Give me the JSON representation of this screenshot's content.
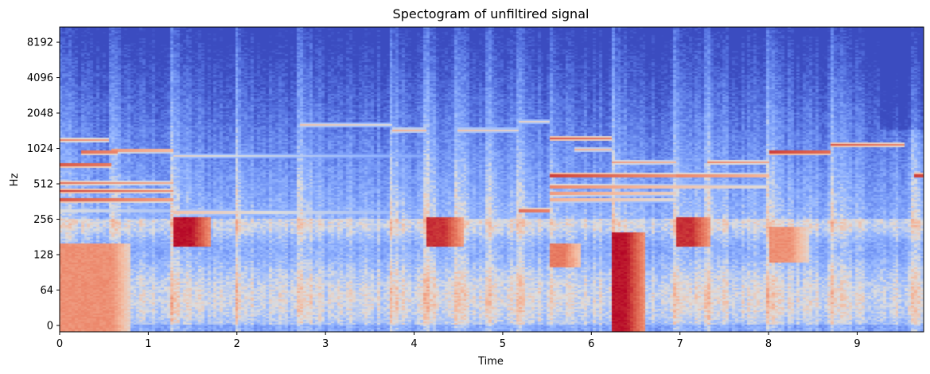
{
  "chart_data": {
    "type": "heatmap",
    "title": "Spectogram of unfiltired signal",
    "xlabel": "Time",
    "ylabel": "Hz",
    "xlim": [
      0,
      9.75
    ],
    "ylim_hz": [
      0,
      11025
    ],
    "y_scale": "symlog",
    "colormap": "coolwarm",
    "x_ticks": [
      0,
      1,
      2,
      3,
      4,
      5,
      6,
      7,
      8,
      9
    ],
    "x_tick_labels": [
      "0",
      "1",
      "2",
      "3",
      "4",
      "5",
      "6",
      "7",
      "8",
      "9"
    ],
    "y_ticks": [
      0,
      64,
      128,
      256,
      512,
      1024,
      2048,
      4096,
      8192
    ],
    "y_tick_labels": [
      "0",
      "64",
      "128",
      "256",
      "512",
      "1024",
      "2048",
      "4096",
      "8192"
    ],
    "onsets_s": [
      0.0,
      0.57,
      1.28,
      2.0,
      2.72,
      3.75,
      4.15,
      4.5,
      4.85,
      5.18,
      5.55,
      6.25,
      6.95,
      7.32,
      8.02,
      8.72,
      9.65
    ],
    "tones": [
      {
        "start": 0.0,
        "end": 1.28,
        "hz": 440,
        "level": 0.9
      },
      {
        "start": 0.0,
        "end": 1.28,
        "hz": 370,
        "level": 0.85
      },
      {
        "start": 0.0,
        "end": 1.28,
        "hz": 520,
        "level": 0.8
      },
      {
        "start": 0.0,
        "end": 0.6,
        "hz": 740,
        "level": 0.85
      },
      {
        "start": 0.25,
        "end": 0.65,
        "hz": 950,
        "level": 0.8
      },
      {
        "start": 0.6,
        "end": 1.28,
        "hz": 980,
        "level": 0.7
      },
      {
        "start": 0.0,
        "end": 0.55,
        "hz": 1200,
        "level": 0.75
      },
      {
        "start": 1.28,
        "end": 4.15,
        "hz": 290,
        "level": 0.6
      },
      {
        "start": 1.28,
        "end": 4.15,
        "hz": 880,
        "level": 0.55
      },
      {
        "start": 2.72,
        "end": 3.75,
        "hz": 1600,
        "level": 0.6
      },
      {
        "start": 3.75,
        "end": 4.15,
        "hz": 1450,
        "level": 0.65
      },
      {
        "start": 4.5,
        "end": 5.18,
        "hz": 1450,
        "level": 0.6
      },
      {
        "start": 5.18,
        "end": 5.55,
        "hz": 300,
        "level": 0.8
      },
      {
        "start": 5.18,
        "end": 5.55,
        "hz": 1700,
        "level": 0.55
      },
      {
        "start": 5.55,
        "end": 6.95,
        "hz": 600,
        "level": 0.9
      },
      {
        "start": 5.55,
        "end": 6.95,
        "hz": 480,
        "level": 0.75
      },
      {
        "start": 5.55,
        "end": 6.95,
        "hz": 420,
        "level": 0.7
      },
      {
        "start": 5.55,
        "end": 6.95,
        "hz": 370,
        "level": 0.65
      },
      {
        "start": 5.55,
        "end": 6.25,
        "hz": 1250,
        "level": 0.85
      },
      {
        "start": 5.8,
        "end": 6.25,
        "hz": 1000,
        "level": 0.65
      },
      {
        "start": 6.25,
        "end": 6.95,
        "hz": 780,
        "level": 0.7
      },
      {
        "start": 6.95,
        "end": 8.02,
        "hz": 600,
        "level": 0.75
      },
      {
        "start": 6.95,
        "end": 8.02,
        "hz": 480,
        "level": 0.6
      },
      {
        "start": 7.32,
        "end": 8.02,
        "hz": 780,
        "level": 0.75
      },
      {
        "start": 8.02,
        "end": 8.72,
        "hz": 950,
        "level": 0.9
      },
      {
        "start": 8.72,
        "end": 9.55,
        "hz": 1100,
        "level": 0.85
      },
      {
        "start": 9.65,
        "end": 9.75,
        "hz": 600,
        "level": 0.9
      },
      {
        "start": 0.0,
        "end": 9.75,
        "hz": 300,
        "level": 0.5
      }
    ],
    "low_frequency_bursts": [
      {
        "start": 0.0,
        "end": 0.6,
        "hz_low": 0,
        "hz_high": 160,
        "level": 0.75
      },
      {
        "start": 1.28,
        "end": 1.5,
        "hz_low": 150,
        "hz_high": 260,
        "level": 1.0
      },
      {
        "start": 4.15,
        "end": 4.35,
        "hz_low": 150,
        "hz_high": 260,
        "level": 0.95
      },
      {
        "start": 5.55,
        "end": 5.7,
        "hz_low": 100,
        "hz_high": 160,
        "level": 0.8
      },
      {
        "start": 6.25,
        "end": 6.4,
        "hz_low": 0,
        "hz_high": 200,
        "level": 1.0
      },
      {
        "start": 6.95,
        "end": 7.15,
        "hz_low": 150,
        "hz_high": 260,
        "level": 0.95
      },
      {
        "start": 8.02,
        "end": 8.25,
        "hz_low": 110,
        "hz_high": 220,
        "level": 0.75
      }
    ]
  }
}
